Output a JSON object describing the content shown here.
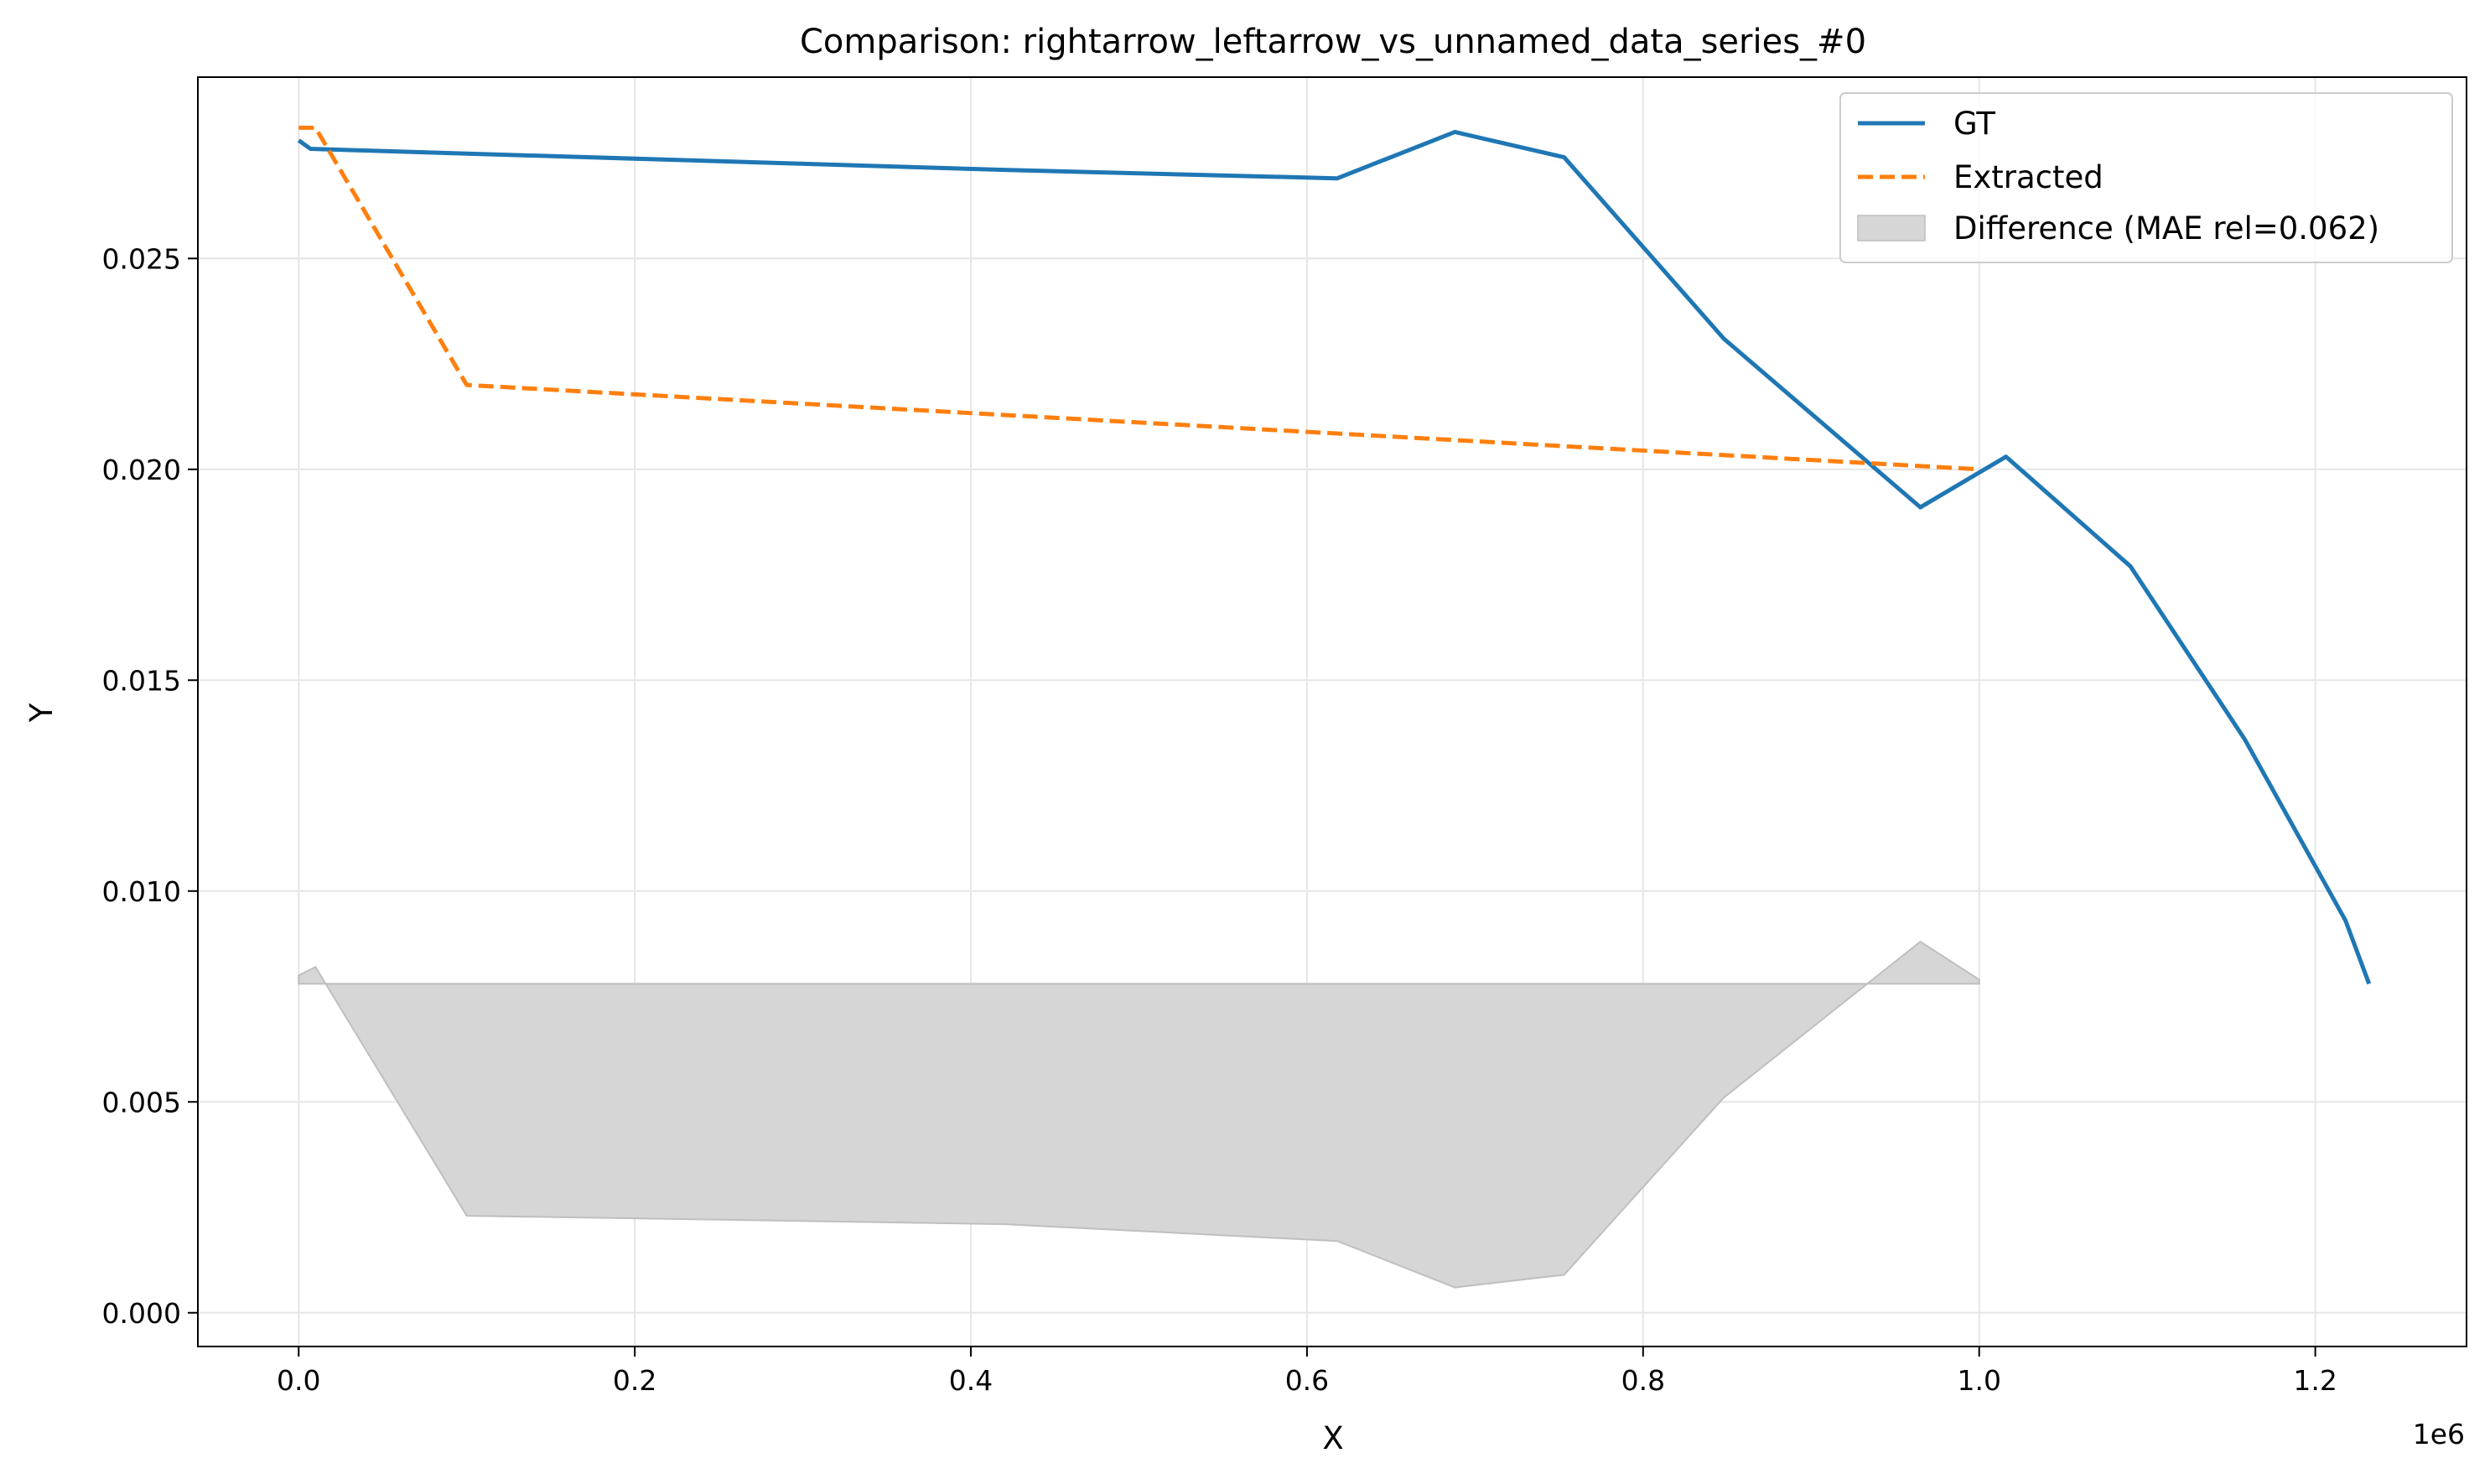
{
  "chart_data": {
    "type": "line",
    "title": "Comparison: rightarrow_leftarrow_vs_unnamed_data_series_#0",
    "xlabel": "X",
    "ylabel": "Y",
    "x_offset_label": "1e6",
    "xlim": [
      -60000,
      1290000
    ],
    "ylim": [
      -0.0008,
      0.0293
    ],
    "x_ticks": [
      0,
      200000,
      400000,
      600000,
      800000,
      1000000,
      1200000
    ],
    "x_tick_labels": [
      "0.0",
      "0.2",
      "0.4",
      "0.6",
      "0.8",
      "1.0",
      "1.2"
    ],
    "y_ticks": [
      0,
      0.005,
      0.01,
      0.015,
      0.02,
      0.025
    ],
    "y_tick_labels": [
      "0.000",
      "0.005",
      "0.010",
      "0.015",
      "0.020",
      "0.025"
    ],
    "grid": true,
    "legend_position": "top-right",
    "series": [
      {
        "name": "GT",
        "style": "solid",
        "color": "#1f77b4",
        "x": [
          0,
          7000,
          420000,
          618000,
          688000,
          753000,
          848000,
          965000,
          1016000,
          1090000,
          1158000,
          1218000,
          1232000
        ],
        "y": [
          0.0278,
          0.0276,
          0.0271,
          0.0269,
          0.028,
          0.0274,
          0.0231,
          0.0191,
          0.0203,
          0.0177,
          0.0136,
          0.0093,
          0.0078
        ]
      },
      {
        "name": "Extracted",
        "style": "dashed",
        "color": "#ff7f0e",
        "x": [
          0,
          10000,
          100000,
          1000000
        ],
        "y": [
          0.0281,
          0.0281,
          0.022,
          0.02
        ]
      },
      {
        "name": "Difference (MAE rel=0.062)",
        "style": "fill",
        "color": "#d6d6d6",
        "baseline": 0.0078,
        "x": [
          0,
          10000,
          100000,
          420000,
          618000,
          688000,
          753000,
          848000,
          965000,
          1000000
        ],
        "y": [
          0.008,
          0.0082,
          0.0023,
          0.0021,
          0.0017,
          0.0006,
          0.0009,
          0.0051,
          0.0088,
          0.0079
        ]
      }
    ]
  }
}
